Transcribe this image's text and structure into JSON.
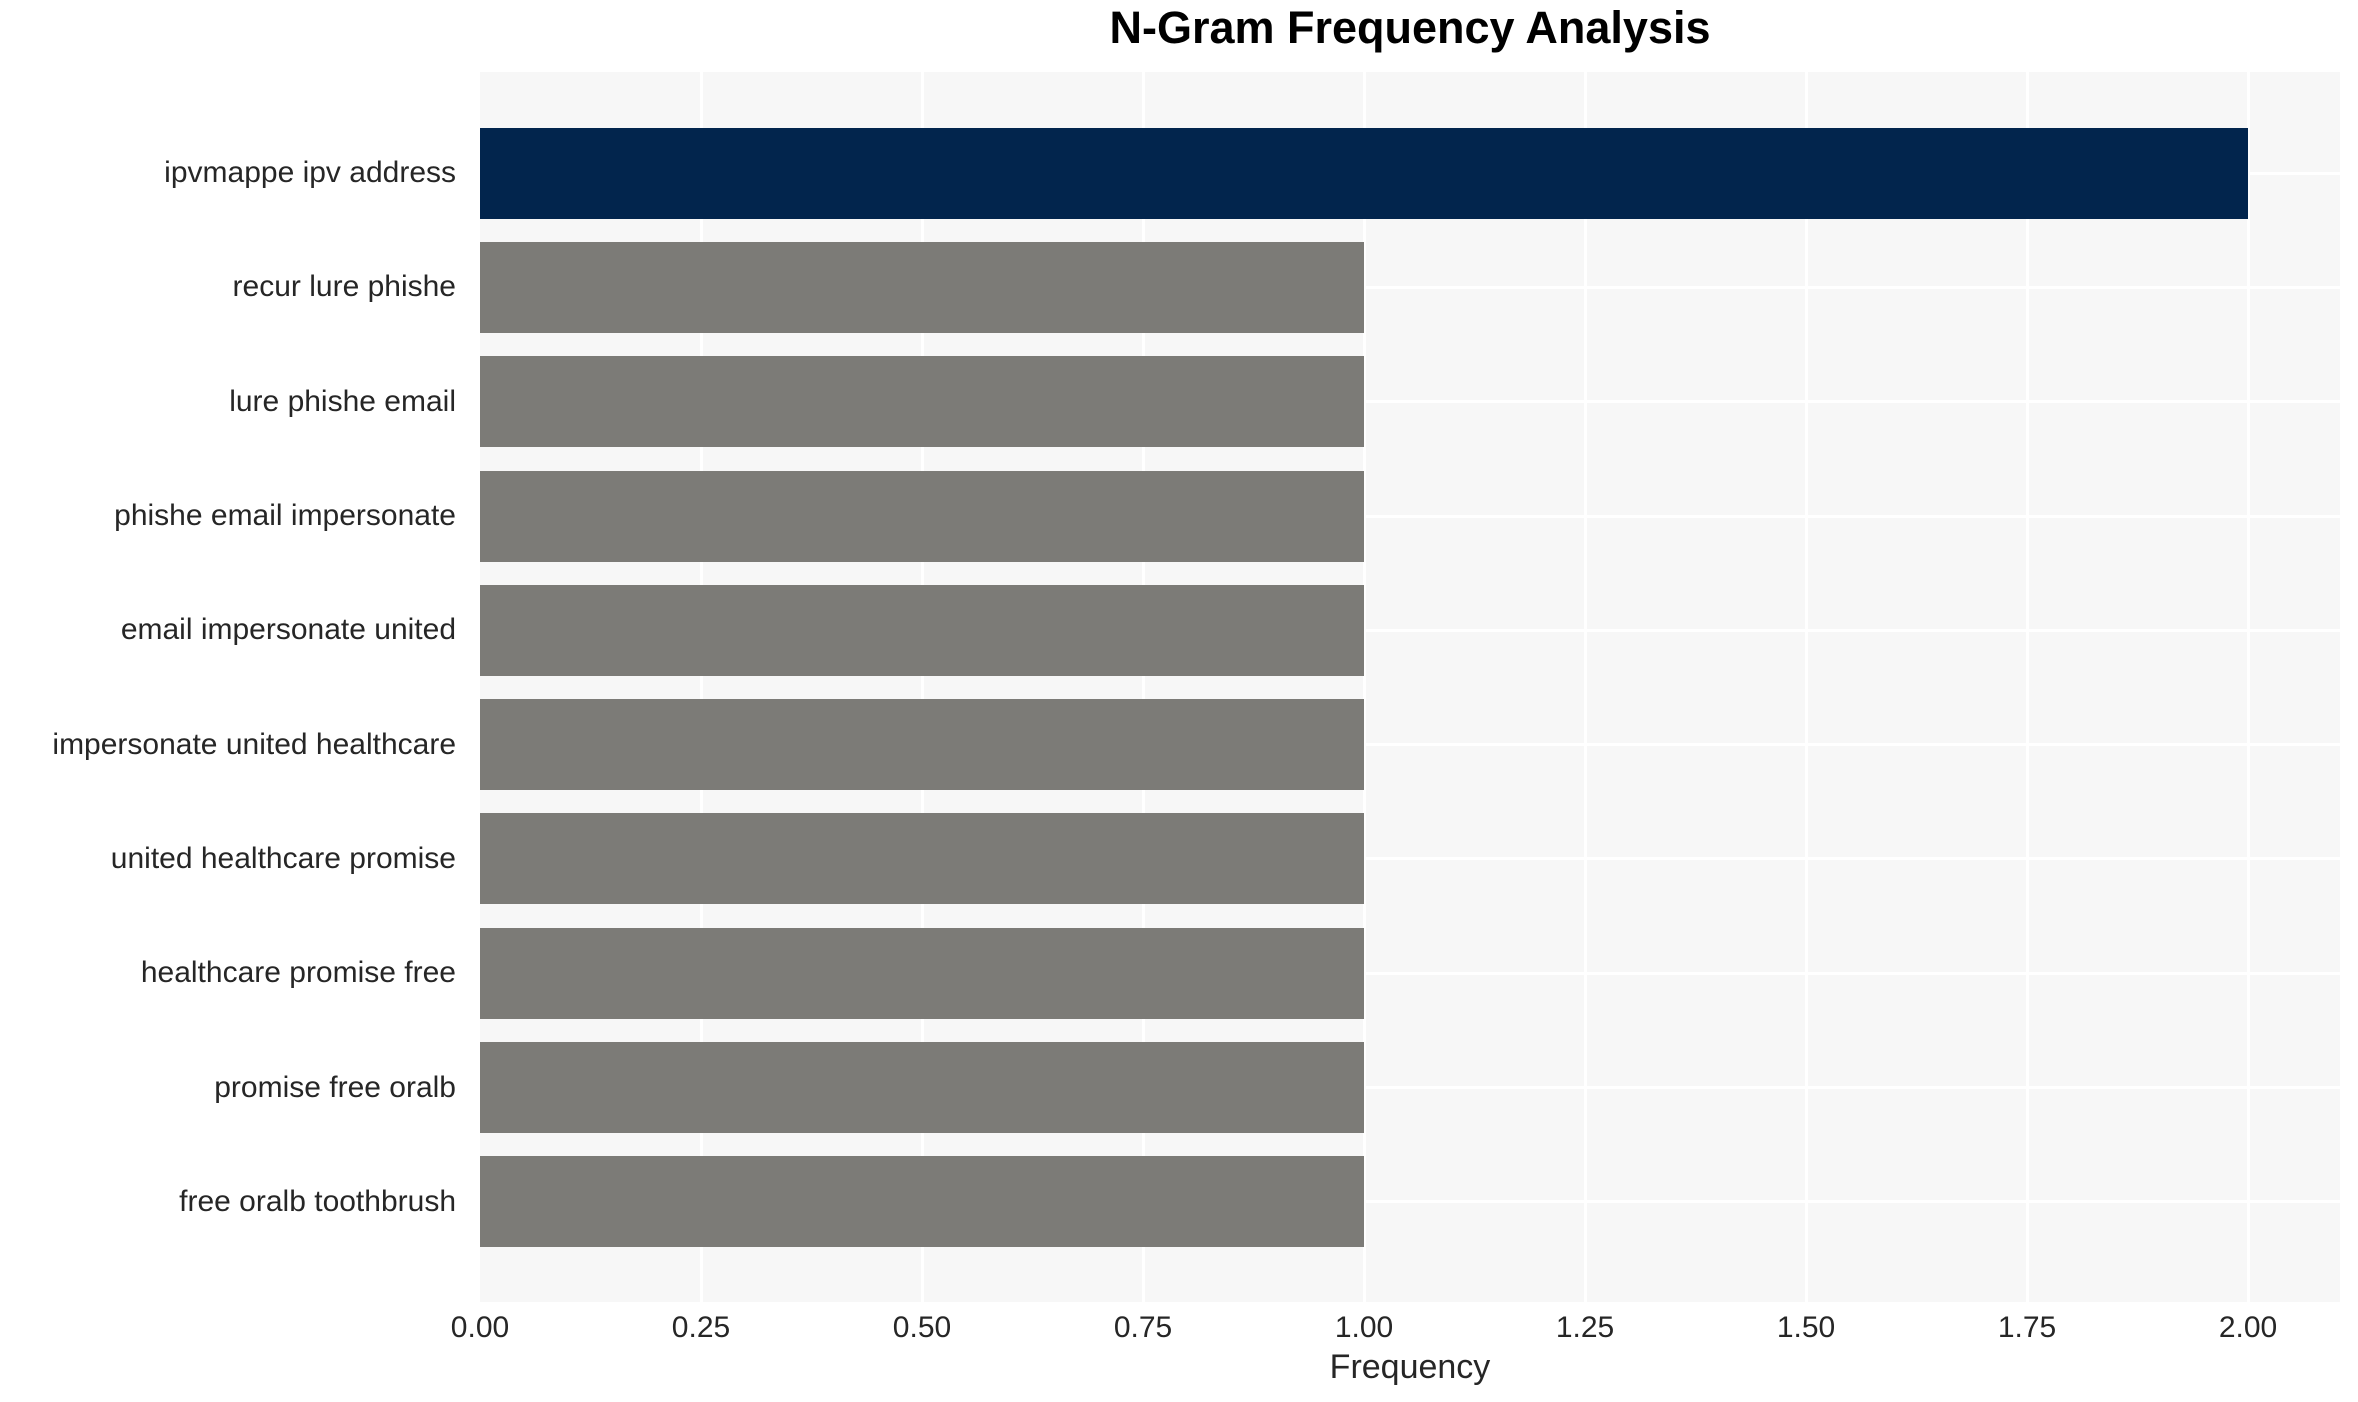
{
  "chart_data": {
    "type": "bar",
    "orientation": "horizontal",
    "title": "N-Gram Frequency Analysis",
    "xlabel": "Frequency",
    "ylabel": "",
    "categories": [
      "ipvmappe ipv address",
      "recur lure phishe",
      "lure phishe email",
      "phishe email impersonate",
      "email impersonate united",
      "impersonate united healthcare",
      "united healthcare promise",
      "healthcare promise free",
      "promise free oralb",
      "free oralb toothbrush"
    ],
    "values": [
      2,
      1,
      1,
      1,
      1,
      1,
      1,
      1,
      1,
      1
    ],
    "bar_colors": [
      "#02254d",
      "#7c7b77",
      "#7c7b77",
      "#7c7b77",
      "#7c7b77",
      "#7c7b77",
      "#7c7b77",
      "#7c7b77",
      "#7c7b77",
      "#7c7b77"
    ],
    "xlim": [
      0,
      2.104
    ],
    "xticks": [
      0.0,
      0.25,
      0.5,
      0.75,
      1.0,
      1.25,
      1.5,
      1.75,
      2.0
    ],
    "xtick_labels": [
      "0.00",
      "0.25",
      "0.50",
      "0.75",
      "1.00",
      "1.25",
      "1.50",
      "1.75",
      "2.00"
    ],
    "legend": null,
    "grid": {
      "vertical_at_xticks": true,
      "horizontal_at_category_centers": true
    },
    "style": {
      "highlight_color": "#02254d",
      "base_color": "#7c7b77",
      "plot_background": "#f7f7f7",
      "grid_color": "#ffffff",
      "text_color": "#262626",
      "title_color": "#000000"
    }
  }
}
